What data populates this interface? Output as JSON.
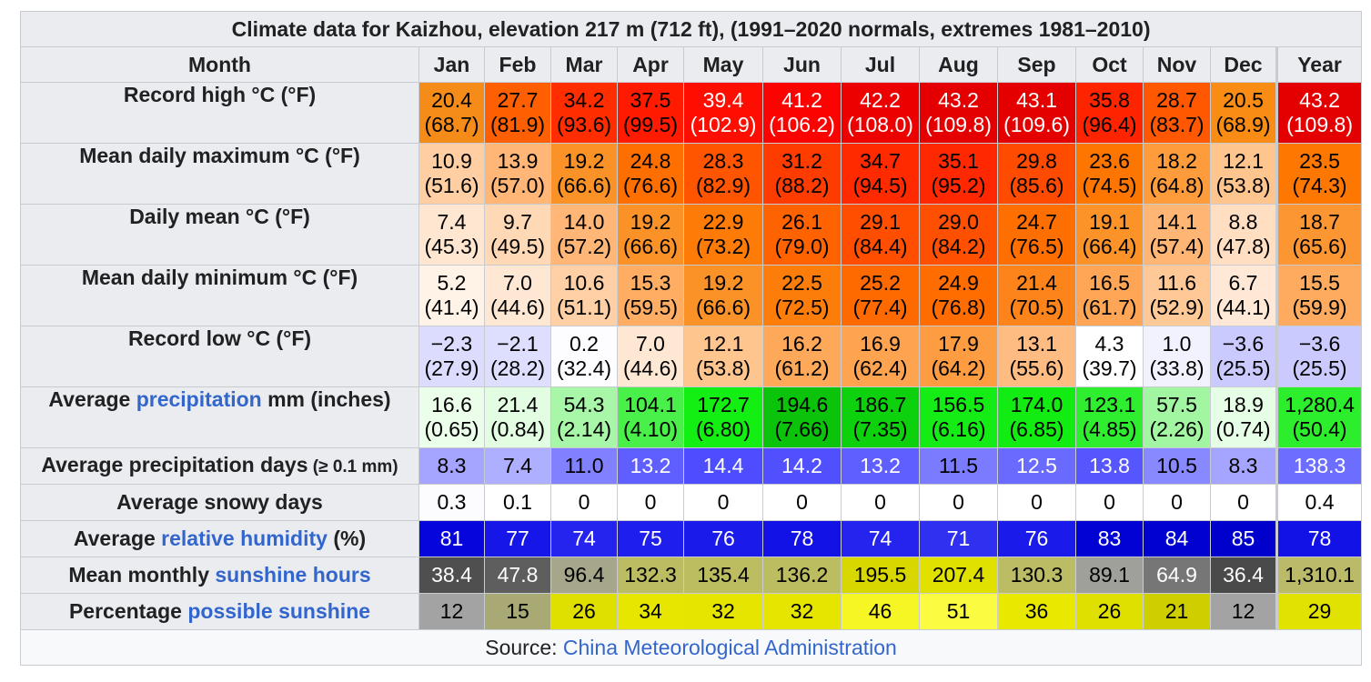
{
  "caption": "Climate data for Kaizhou, elevation 217 m (712 ft), (1991–2020 normals, extremes 1981–2010)",
  "header": {
    "label": "Month",
    "months": [
      "Jan",
      "Feb",
      "Mar",
      "Apr",
      "May",
      "Jun",
      "Jul",
      "Aug",
      "Sep",
      "Oct",
      "Nov",
      "Dec",
      "Year"
    ]
  },
  "rows": [
    {
      "id": "record-high",
      "label_pre": "Record high °C (°F)",
      "label_link": "",
      "label_post": "",
      "label_small": "",
      "cells": [
        {
          "v": "20.4",
          "s": "(68.7)",
          "bg": "#f58c1a",
          "fg": "#000000"
        },
        {
          "v": "27.7",
          "s": "(81.9)",
          "bg": "#fe5f00",
          "fg": "#000000"
        },
        {
          "v": "34.2",
          "s": "(93.6)",
          "bg": "#ff2d00",
          "fg": "#000000"
        },
        {
          "v": "37.5",
          "s": "(99.5)",
          "bg": "#ff1a00",
          "fg": "#000000"
        },
        {
          "v": "39.4",
          "s": "(102.9)",
          "bg": "#fe0e00",
          "fg": "#ffffff"
        },
        {
          "v": "41.2",
          "s": "(106.2)",
          "bg": "#fb0300",
          "fg": "#ffffff"
        },
        {
          "v": "42.2",
          "s": "(108.0)",
          "bg": "#ed0000",
          "fg": "#ffffff"
        },
        {
          "v": "43.2",
          "s": "(109.8)",
          "bg": "#e40000",
          "fg": "#ffffff"
        },
        {
          "v": "43.1",
          "s": "(109.6)",
          "bg": "#e50000",
          "fg": "#ffffff"
        },
        {
          "v": "35.8",
          "s": "(96.4)",
          "bg": "#ff2400",
          "fg": "#000000"
        },
        {
          "v": "28.7",
          "s": "(83.7)",
          "bg": "#ff5800",
          "fg": "#000000"
        },
        {
          "v": "20.5",
          "s": "(68.9)",
          "bg": "#f88c14",
          "fg": "#000000"
        },
        {
          "v": "43.2",
          "s": "(109.8)",
          "bg": "#e40000",
          "fg": "#ffffff"
        }
      ]
    },
    {
      "id": "mean-max",
      "label_pre": "Mean daily maximum °C (°F)",
      "label_link": "",
      "label_post": "",
      "label_small": "",
      "cells": [
        {
          "v": "10.9",
          "s": "(51.6)",
          "bg": "#ffcea2",
          "fg": "#000000"
        },
        {
          "v": "13.9",
          "s": "(57.0)",
          "bg": "#ffb677",
          "fg": "#000000"
        },
        {
          "v": "19.2",
          "s": "(66.6)",
          "bg": "#fb9228",
          "fg": "#000000"
        },
        {
          "v": "24.8",
          "s": "(76.6)",
          "bg": "#ff6f00",
          "fg": "#000000"
        },
        {
          "v": "28.3",
          "s": "(82.9)",
          "bg": "#ff5500",
          "fg": "#000000"
        },
        {
          "v": "31.2",
          "s": "(88.2)",
          "bg": "#ff3c00",
          "fg": "#000000"
        },
        {
          "v": "34.7",
          "s": "(94.5)",
          "bg": "#ff2a00",
          "fg": "#000000"
        },
        {
          "v": "35.1",
          "s": "(95.2)",
          "bg": "#ff2800",
          "fg": "#000000"
        },
        {
          "v": "29.8",
          "s": "(85.6)",
          "bg": "#ff4b00",
          "fg": "#000000"
        },
        {
          "v": "23.6",
          "s": "(74.5)",
          "bg": "#fe7600",
          "fg": "#000000"
        },
        {
          "v": "18.2",
          "s": "(64.8)",
          "bg": "#fe9b3a",
          "fg": "#000000"
        },
        {
          "v": "12.1",
          "s": "(53.8)",
          "bg": "#ffc58f",
          "fg": "#000000"
        },
        {
          "v": "23.5",
          "s": "(74.3)",
          "bg": "#fe7700",
          "fg": "#000000"
        }
      ]
    },
    {
      "id": "daily-mean",
      "label_pre": "Daily mean °C (°F)",
      "label_link": "",
      "label_post": "",
      "label_small": "",
      "cells": [
        {
          "v": "7.4",
          "s": "(45.3)",
          "bg": "#ffe6d0",
          "fg": "#000000"
        },
        {
          "v": "9.7",
          "s": "(49.5)",
          "bg": "#ffd9b6",
          "fg": "#000000"
        },
        {
          "v": "14.0",
          "s": "(57.2)",
          "bg": "#ffb676",
          "fg": "#000000"
        },
        {
          "v": "19.2",
          "s": "(66.6)",
          "bg": "#fb9228",
          "fg": "#000000"
        },
        {
          "v": "22.9",
          "s": "(73.2)",
          "bg": "#fd7b06",
          "fg": "#000000"
        },
        {
          "v": "26.1",
          "s": "(79.0)",
          "bg": "#ff6300",
          "fg": "#000000"
        },
        {
          "v": "29.1",
          "s": "(84.4)",
          "bg": "#ff4e00",
          "fg": "#000000"
        },
        {
          "v": "29.0",
          "s": "(84.2)",
          "bg": "#ff4f00",
          "fg": "#000000"
        },
        {
          "v": "24.7",
          "s": "(76.5)",
          "bg": "#ff6f00",
          "fg": "#000000"
        },
        {
          "v": "19.1",
          "s": "(66.4)",
          "bg": "#fb9329",
          "fg": "#000000"
        },
        {
          "v": "14.1",
          "s": "(57.4)",
          "bg": "#ffb574",
          "fg": "#000000"
        },
        {
          "v": "8.8",
          "s": "(47.8)",
          "bg": "#ffdec1",
          "fg": "#000000"
        },
        {
          "v": "18.7",
          "s": "(65.6)",
          "bg": "#fc9632",
          "fg": "#000000"
        }
      ]
    },
    {
      "id": "mean-min",
      "label_pre": "Mean daily minimum °C (°F)",
      "label_link": "",
      "label_post": "",
      "label_small": "",
      "cells": [
        {
          "v": "5.2",
          "s": "(41.4)",
          "bg": "#fff2e6",
          "fg": "#000000"
        },
        {
          "v": "7.0",
          "s": "(44.6)",
          "bg": "#ffe8d3",
          "fg": "#000000"
        },
        {
          "v": "10.6",
          "s": "(51.1)",
          "bg": "#ffd0a5",
          "fg": "#000000"
        },
        {
          "v": "15.3",
          "s": "(59.5)",
          "bg": "#ffad63",
          "fg": "#000000"
        },
        {
          "v": "19.2",
          "s": "(66.6)",
          "bg": "#fb9228",
          "fg": "#000000"
        },
        {
          "v": "22.5",
          "s": "(72.5)",
          "bg": "#fd7d0a",
          "fg": "#000000"
        },
        {
          "v": "25.2",
          "s": "(77.4)",
          "bg": "#ff6a00",
          "fg": "#000000"
        },
        {
          "v": "24.9",
          "s": "(76.8)",
          "bg": "#ff6c00",
          "fg": "#000000"
        },
        {
          "v": "21.4",
          "s": "(70.5)",
          "bg": "#fd841a",
          "fg": "#000000"
        },
        {
          "v": "16.5",
          "s": "(61.7)",
          "bg": "#fea655",
          "fg": "#000000"
        },
        {
          "v": "11.6",
          "s": "(52.9)",
          "bg": "#ffc997",
          "fg": "#000000"
        },
        {
          "v": "6.7",
          "s": "(44.1)",
          "bg": "#ffe9d6",
          "fg": "#000000"
        },
        {
          "v": "15.5",
          "s": "(59.9)",
          "bg": "#ffab5f",
          "fg": "#000000"
        }
      ]
    },
    {
      "id": "record-low",
      "label_pre": "Record low °C (°F)",
      "label_link": "",
      "label_post": "",
      "label_small": "",
      "cells": [
        {
          "v": "−2.3",
          "s": "(27.9)",
          "bg": "#dcdcff",
          "fg": "#000000"
        },
        {
          "v": "−2.1",
          "s": "(28.2)",
          "bg": "#dedeff",
          "fg": "#000000"
        },
        {
          "v": "0.2",
          "s": "(32.4)",
          "bg": "#fdfdff",
          "fg": "#000000"
        },
        {
          "v": "7.0",
          "s": "(44.6)",
          "bg": "#ffe8d3",
          "fg": "#000000"
        },
        {
          "v": "12.1",
          "s": "(53.8)",
          "bg": "#ffc58f",
          "fg": "#000000"
        },
        {
          "v": "16.2",
          "s": "(61.2)",
          "bg": "#fea85a",
          "fg": "#000000"
        },
        {
          "v": "16.9",
          "s": "(62.4)",
          "bg": "#fea350",
          "fg": "#000000"
        },
        {
          "v": "17.9",
          "s": "(64.2)",
          "bg": "#fd9c40",
          "fg": "#000000"
        },
        {
          "v": "13.1",
          "s": "(55.6)",
          "bg": "#ffbc82",
          "fg": "#000000"
        },
        {
          "v": "4.3",
          "s": "(39.7)",
          "bg": "#ffffff",
          "fg": "#000000"
        },
        {
          "v": "1.0",
          "s": "(33.8)",
          "bg": "#f2f2ff",
          "fg": "#000000"
        },
        {
          "v": "−3.6",
          "s": "(25.5)",
          "bg": "#cacaff",
          "fg": "#000000"
        },
        {
          "v": "−3.6",
          "s": "(25.5)",
          "bg": "#cacaff",
          "fg": "#000000"
        }
      ]
    },
    {
      "id": "precip",
      "label_pre": "Average ",
      "label_link": "precipitation",
      "label_post": " mm (inches)",
      "label_small": "",
      "cells": [
        {
          "v": "16.6",
          "s": "(0.65)",
          "bg": "#eafeea",
          "fg": "#000000"
        },
        {
          "v": "21.4",
          "s": "(0.84)",
          "bg": "#e2fde2",
          "fg": "#000000"
        },
        {
          "v": "54.3",
          "s": "(2.14)",
          "bg": "#a8f7a8",
          "fg": "#000000"
        },
        {
          "v": "104.1",
          "s": "(4.10)",
          "bg": "#49f049",
          "fg": "#000000"
        },
        {
          "v": "172.7",
          "s": "(6.80)",
          "bg": "#13ee13",
          "fg": "#000000"
        },
        {
          "v": "194.6",
          "s": "(7.66)",
          "bg": "#0ac30a",
          "fg": "#000000"
        },
        {
          "v": "186.7",
          "s": "(7.35)",
          "bg": "#0cd10c",
          "fg": "#000000"
        },
        {
          "v": "156.5",
          "s": "(6.16)",
          "bg": "#15ec15",
          "fg": "#000000"
        },
        {
          "v": "174.0",
          "s": "(6.85)",
          "bg": "#12ec12",
          "fg": "#000000"
        },
        {
          "v": "123.1",
          "s": "(4.85)",
          "bg": "#2fee2f",
          "fg": "#000000"
        },
        {
          "v": "57.5",
          "s": "(2.26)",
          "bg": "#a2f6a2",
          "fg": "#000000"
        },
        {
          "v": "18.9",
          "s": "(0.74)",
          "bg": "#e6fde6",
          "fg": "#000000"
        },
        {
          "v": "1,280.4",
          "s": "(50.4)",
          "bg": "#2cee2c",
          "fg": "#000000"
        }
      ]
    },
    {
      "id": "precip-days",
      "label_pre": "Average precipitation days",
      "label_link": "",
      "label_post": "",
      "label_small": " (≥ 0.1 mm)",
      "cells": [
        {
          "v": "8.3",
          "bg": "#a5a5ff",
          "fg": "#000000"
        },
        {
          "v": "7.4",
          "bg": "#afafff",
          "fg": "#000000"
        },
        {
          "v": "11.0",
          "bg": "#8181ff",
          "fg": "#000000"
        },
        {
          "v": "13.2",
          "bg": "#5f5fff",
          "fg": "#ffffff"
        },
        {
          "v": "14.4",
          "bg": "#4d4dff",
          "fg": "#ffffff"
        },
        {
          "v": "14.2",
          "bg": "#5050ff",
          "fg": "#ffffff"
        },
        {
          "v": "13.2",
          "bg": "#5f5fff",
          "fg": "#ffffff"
        },
        {
          "v": "11.5",
          "bg": "#7b7bff",
          "fg": "#000000"
        },
        {
          "v": "12.5",
          "bg": "#6a6aff",
          "fg": "#ffffff"
        },
        {
          "v": "13.8",
          "bg": "#5656ff",
          "fg": "#ffffff"
        },
        {
          "v": "10.5",
          "bg": "#8888ff",
          "fg": "#000000"
        },
        {
          "v": "8.3",
          "bg": "#a5a5ff",
          "fg": "#000000"
        },
        {
          "v": "138.3",
          "bg": "#6d6dff",
          "fg": "#ffffff"
        }
      ]
    },
    {
      "id": "snowy-days",
      "label_pre": "Average snowy days",
      "label_link": "",
      "label_post": "",
      "label_small": "",
      "cells": [
        {
          "v": "0.3",
          "bg": "#fcfcff",
          "fg": "#000000"
        },
        {
          "v": "0.1",
          "bg": "#ffffff",
          "fg": "#000000"
        },
        {
          "v": "0",
          "bg": "#ffffff",
          "fg": "#000000"
        },
        {
          "v": "0",
          "bg": "#ffffff",
          "fg": "#000000"
        },
        {
          "v": "0",
          "bg": "#ffffff",
          "fg": "#000000"
        },
        {
          "v": "0",
          "bg": "#ffffff",
          "fg": "#000000"
        },
        {
          "v": "0",
          "bg": "#ffffff",
          "fg": "#000000"
        },
        {
          "v": "0",
          "bg": "#ffffff",
          "fg": "#000000"
        },
        {
          "v": "0",
          "bg": "#ffffff",
          "fg": "#000000"
        },
        {
          "v": "0",
          "bg": "#ffffff",
          "fg": "#000000"
        },
        {
          "v": "0",
          "bg": "#ffffff",
          "fg": "#000000"
        },
        {
          "v": "0",
          "bg": "#ffffff",
          "fg": "#000000"
        },
        {
          "v": "0.4",
          "bg": "#ffffff",
          "fg": "#000000"
        }
      ]
    },
    {
      "id": "humidity",
      "label_pre": "Average ",
      "label_link": "relative humidity",
      "label_post": " (%)",
      "label_small": "",
      "cells": [
        {
          "v": "81",
          "bg": "#0505dc",
          "fg": "#ffffff"
        },
        {
          "v": "77",
          "bg": "#1616e8",
          "fg": "#ffffff"
        },
        {
          "v": "74",
          "bg": "#2424ee",
          "fg": "#ffffff"
        },
        {
          "v": "75",
          "bg": "#1f1fed",
          "fg": "#ffffff"
        },
        {
          "v": "76",
          "bg": "#1a1aeb",
          "fg": "#ffffff"
        },
        {
          "v": "78",
          "bg": "#1212e6",
          "fg": "#ffffff"
        },
        {
          "v": "74",
          "bg": "#2424ee",
          "fg": "#ffffff"
        },
        {
          "v": "71",
          "bg": "#3030f0",
          "fg": "#ffffff"
        },
        {
          "v": "76",
          "bg": "#1a1aeb",
          "fg": "#ffffff"
        },
        {
          "v": "83",
          "bg": "#0202d4",
          "fg": "#ffffff"
        },
        {
          "v": "84",
          "bg": "#0101d0",
          "fg": "#ffffff"
        },
        {
          "v": "85",
          "bg": "#0000cc",
          "fg": "#ffffff"
        },
        {
          "v": "78",
          "bg": "#1212e6",
          "fg": "#ffffff"
        }
      ]
    },
    {
      "id": "sunshine-hours",
      "label_pre": "Mean monthly ",
      "label_link": "sunshine hours",
      "label_post": "",
      "label_small": "",
      "cells": [
        {
          "v": "38.4",
          "bg": "#4f4f4f",
          "fg": "#ffffff"
        },
        {
          "v": "47.8",
          "bg": "#5e5e5e",
          "fg": "#ffffff"
        },
        {
          "v": "96.4",
          "bg": "#a6a68a",
          "fg": "#000000"
        },
        {
          "v": "132.3",
          "bg": "#bcbc62",
          "fg": "#000000"
        },
        {
          "v": "135.4",
          "bg": "#bcbc60",
          "fg": "#000000"
        },
        {
          "v": "136.2",
          "bg": "#bcbc60",
          "fg": "#000000"
        },
        {
          "v": "195.5",
          "bg": "#d8d800",
          "fg": "#000000"
        },
        {
          "v": "207.4",
          "bg": "#e1e100",
          "fg": "#000000"
        },
        {
          "v": "130.3",
          "bg": "#bcbc64",
          "fg": "#000000"
        },
        {
          "v": "89.1",
          "bg": "#a0a09a",
          "fg": "#000000"
        },
        {
          "v": "64.9",
          "bg": "#767676",
          "fg": "#ffffff"
        },
        {
          "v": "36.4",
          "bg": "#4a4a4a",
          "fg": "#ffffff"
        },
        {
          "v": "1,310.1",
          "bg": "#baba68",
          "fg": "#000000"
        }
      ]
    },
    {
      "id": "possible-sunshine",
      "label_pre": "Percentage ",
      "label_link": "possible sunshine",
      "label_post": "",
      "label_small": "",
      "cells": [
        {
          "v": "12",
          "bg": "#a3a3a3",
          "fg": "#000000"
        },
        {
          "v": "15",
          "bg": "#a9a975",
          "fg": "#000000"
        },
        {
          "v": "26",
          "bg": "#dfdf00",
          "fg": "#000000"
        },
        {
          "v": "34",
          "bg": "#e6e600",
          "fg": "#000000"
        },
        {
          "v": "32",
          "bg": "#e5e500",
          "fg": "#000000"
        },
        {
          "v": "32",
          "bg": "#e5e500",
          "fg": "#000000"
        },
        {
          "v": "46",
          "bg": "#f6f625",
          "fg": "#000000"
        },
        {
          "v": "51",
          "bg": "#fbfb42",
          "fg": "#000000"
        },
        {
          "v": "36",
          "bg": "#e8e800",
          "fg": "#000000"
        },
        {
          "v": "26",
          "bg": "#dfdf00",
          "fg": "#000000"
        },
        {
          "v": "21",
          "bg": "#cfcf00",
          "fg": "#000000"
        },
        {
          "v": "12",
          "bg": "#a3a3a3",
          "fg": "#000000"
        },
        {
          "v": "29",
          "bg": "#e2e200",
          "fg": "#000000"
        }
      ]
    }
  ],
  "source": {
    "prefix": "Source: ",
    "link": "China Meteorological Administration"
  }
}
